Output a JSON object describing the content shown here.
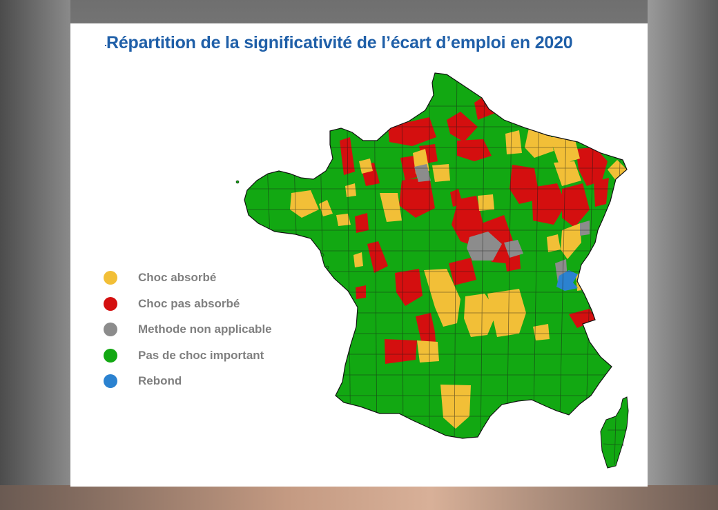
{
  "slide": {
    "title": "Répartition de la significativité de l’écart d’emploi en 2020"
  },
  "colors": {
    "choc_absorbe": "#f2bf37",
    "choc_pas_absorbe": "#d40f0f",
    "methode_non_applicable": "#8c8c8c",
    "pas_de_choc_important": "#12a812",
    "rebond": "#2b82d0"
  },
  "legend": {
    "items": [
      {
        "key": "choc_absorbe",
        "label": "Choc absorbé",
        "icon": "yellow-dot"
      },
      {
        "key": "choc_pas_absorbe",
        "label": "Choc pas absorbé",
        "icon": "red-dot"
      },
      {
        "key": "methode_non_applicable",
        "label": "Methode non applicable",
        "icon": "grey-dot"
      },
      {
        "key": "pas_de_choc_important",
        "label": "Pas de choc important",
        "icon": "green-dot"
      },
      {
        "key": "rebond",
        "label": "Rebond",
        "icon": "blue-dot"
      }
    ]
  }
}
